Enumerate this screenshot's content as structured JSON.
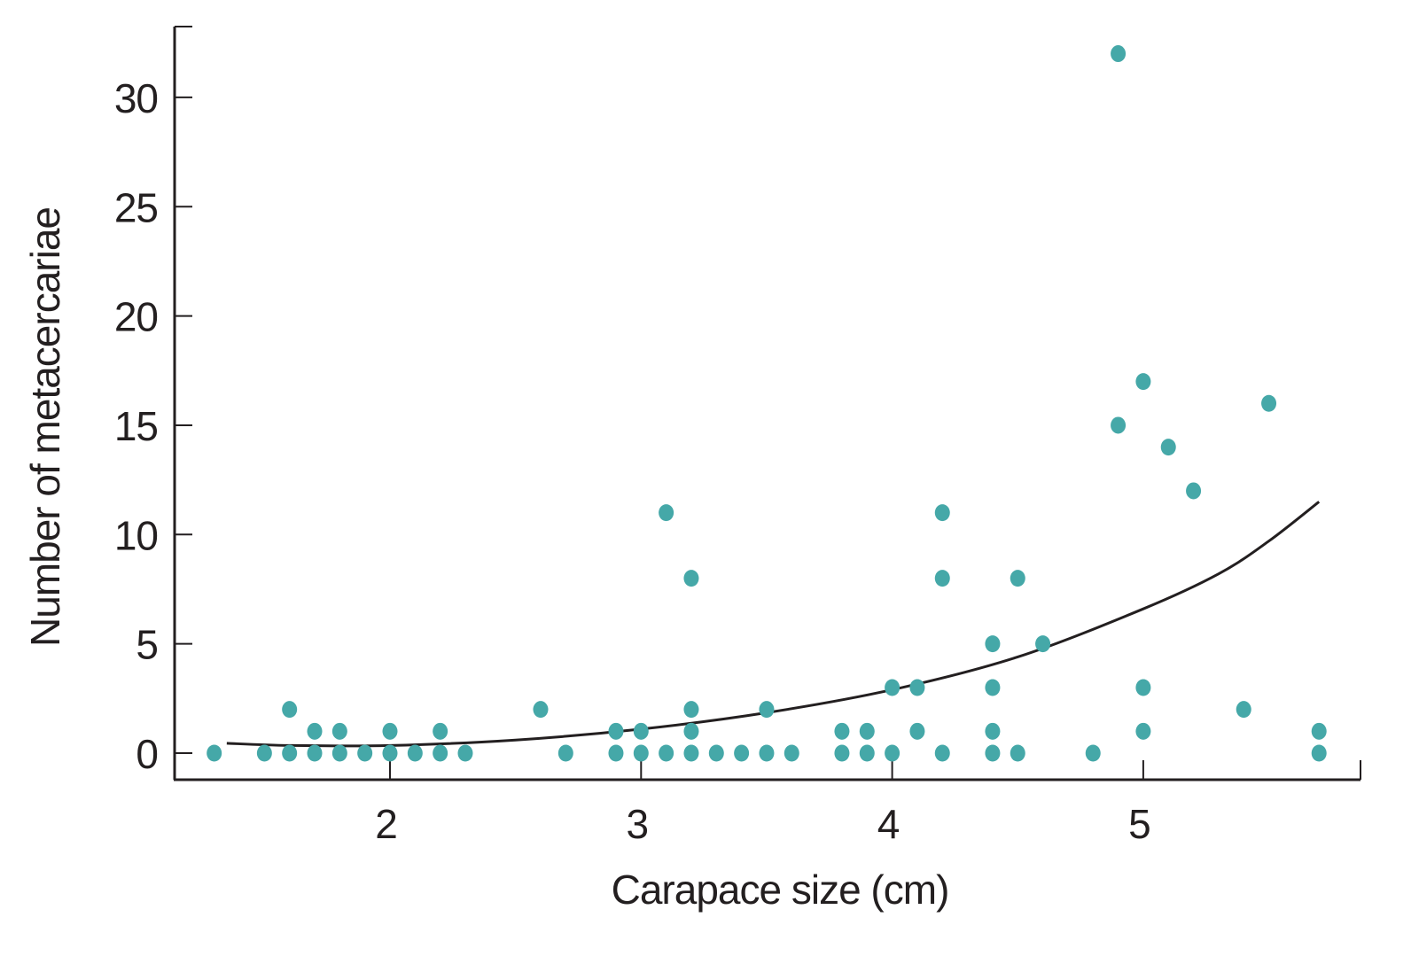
{
  "chart_data": {
    "type": "scatter",
    "title": "",
    "xlabel": "Carapace size (cm)",
    "ylabel": "Number of metacercariae",
    "xlim": [
      1.15,
      5.9
    ],
    "ylim": [
      -1.2,
      33.3
    ],
    "xticks": [
      2,
      3,
      4,
      5
    ],
    "yticks": [
      0,
      5,
      10,
      15,
      20,
      25,
      30
    ],
    "grid": false,
    "legend": "none",
    "point_color": "#45a8a8",
    "line_color": "#231f20",
    "points": [
      [
        1.3,
        0
      ],
      [
        1.5,
        0
      ],
      [
        1.6,
        0
      ],
      [
        1.6,
        2
      ],
      [
        1.7,
        0
      ],
      [
        1.7,
        1
      ],
      [
        1.8,
        0
      ],
      [
        1.8,
        1
      ],
      [
        1.9,
        0
      ],
      [
        2.0,
        0
      ],
      [
        2.0,
        1
      ],
      [
        2.1,
        0
      ],
      [
        2.2,
        0
      ],
      [
        2.2,
        1
      ],
      [
        2.3,
        0
      ],
      [
        2.6,
        2
      ],
      [
        2.7,
        0
      ],
      [
        2.9,
        0
      ],
      [
        2.9,
        1
      ],
      [
        3.0,
        0
      ],
      [
        3.0,
        1
      ],
      [
        3.1,
        0
      ],
      [
        3.1,
        11
      ],
      [
        3.2,
        0
      ],
      [
        3.2,
        1
      ],
      [
        3.2,
        2
      ],
      [
        3.2,
        8
      ],
      [
        3.3,
        0
      ],
      [
        3.4,
        0
      ],
      [
        3.5,
        0
      ],
      [
        3.5,
        2
      ],
      [
        3.6,
        0
      ],
      [
        3.8,
        0
      ],
      [
        3.8,
        1
      ],
      [
        3.9,
        0
      ],
      [
        3.9,
        1
      ],
      [
        4.0,
        0
      ],
      [
        4.0,
        3
      ],
      [
        4.1,
        1
      ],
      [
        4.1,
        3
      ],
      [
        4.2,
        0
      ],
      [
        4.2,
        8
      ],
      [
        4.2,
        11
      ],
      [
        4.4,
        0
      ],
      [
        4.4,
        1
      ],
      [
        4.4,
        3
      ],
      [
        4.4,
        5
      ],
      [
        4.5,
        0
      ],
      [
        4.5,
        8
      ],
      [
        4.6,
        5
      ],
      [
        4.8,
        0
      ],
      [
        4.9,
        15
      ],
      [
        4.9,
        32
      ],
      [
        5.0,
        1
      ],
      [
        5.0,
        3
      ],
      [
        5.0,
        17
      ],
      [
        5.1,
        14
      ],
      [
        5.2,
        12
      ],
      [
        5.4,
        2
      ],
      [
        5.5,
        16
      ],
      [
        5.7,
        0
      ],
      [
        5.7,
        1
      ]
    ],
    "trend_line": [
      [
        1.35,
        0.45
      ],
      [
        1.6,
        0.35
      ],
      [
        2.0,
        0.35
      ],
      [
        2.5,
        0.6
      ],
      [
        3.0,
        1.1
      ],
      [
        3.5,
        1.85
      ],
      [
        4.0,
        2.9
      ],
      [
        4.5,
        4.4
      ],
      [
        5.0,
        6.6
      ],
      [
        5.3,
        8.2
      ],
      [
        5.5,
        9.7
      ],
      [
        5.7,
        11.5
      ]
    ]
  }
}
